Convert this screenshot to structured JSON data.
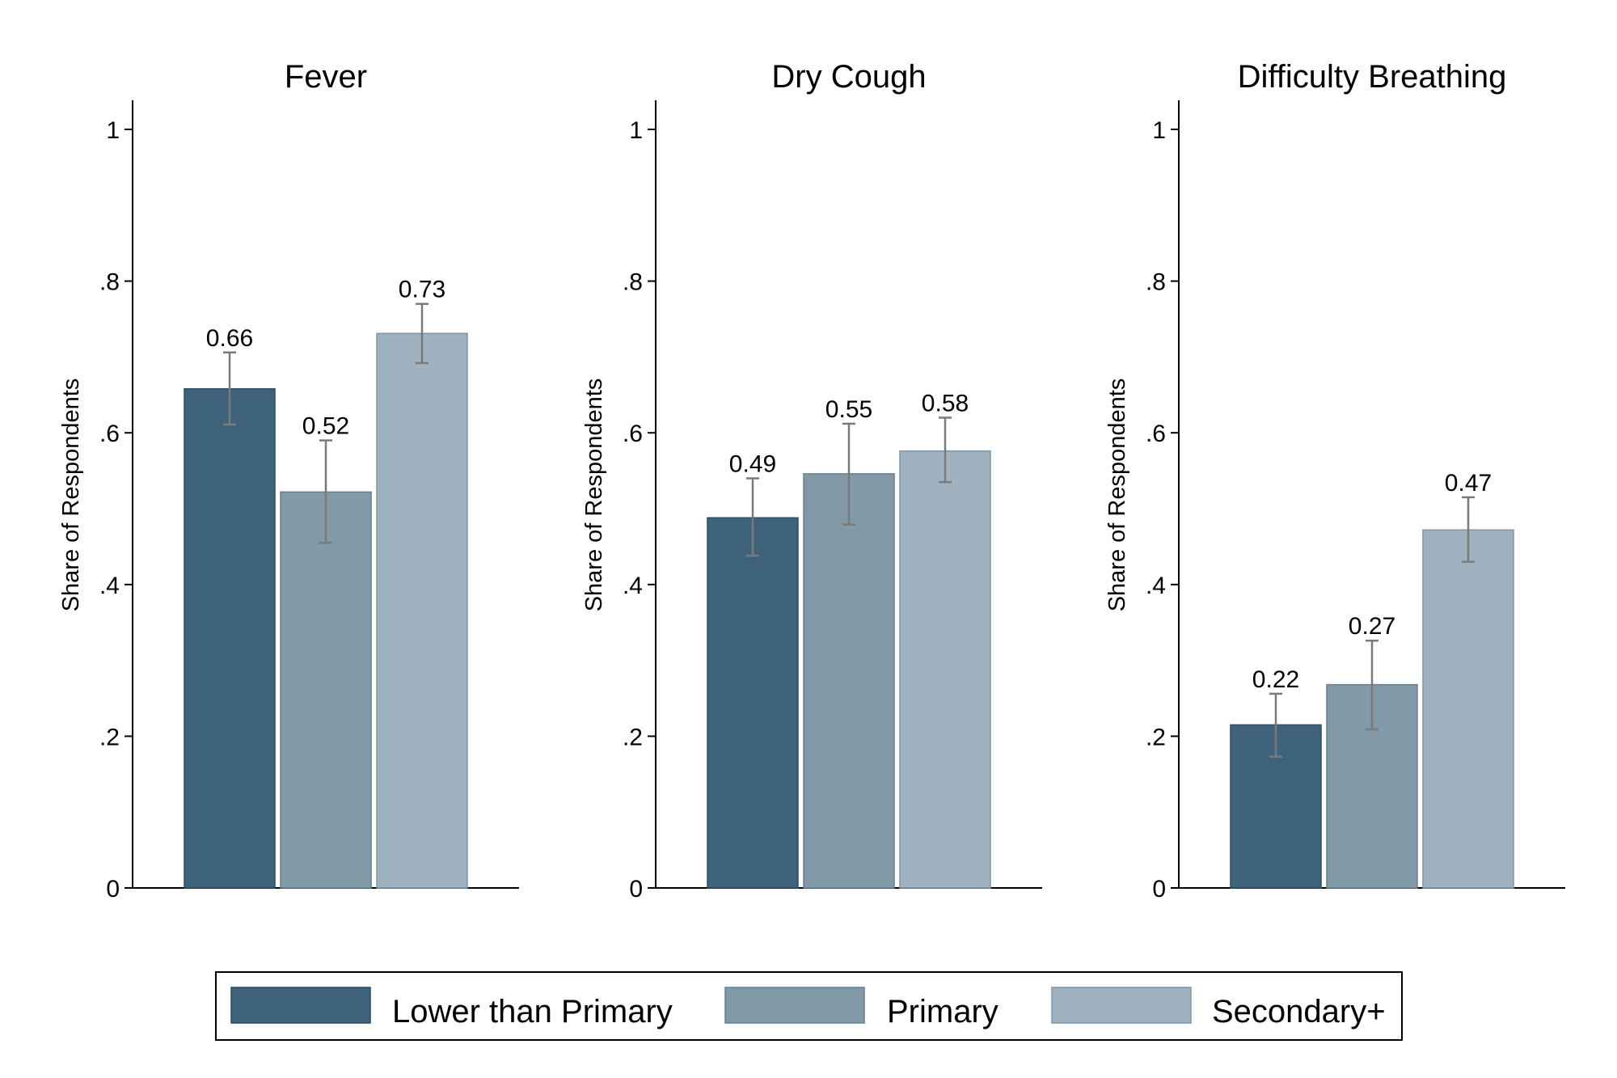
{
  "chart_data": [
    {
      "type": "bar",
      "title": "Fever",
      "ylabel": "Share of Respondents",
      "ylim": [
        0,
        1
      ],
      "yticks": [
        0,
        0.2,
        0.4,
        0.6,
        0.8,
        1
      ],
      "ytick_labels": [
        "0",
        ".2",
        ".4",
        ".6",
        ".8",
        "1"
      ],
      "series": [
        {
          "name": "Lower than Primary",
          "value": 0.658,
          "label": "0.66",
          "ci": [
            0.611,
            0.706
          ]
        },
        {
          "name": "Primary",
          "value": 0.522,
          "label": "0.52",
          "ci": [
            0.455,
            0.59
          ]
        },
        {
          "name": "Secondary+",
          "value": 0.731,
          "label": "0.73",
          "ci": [
            0.692,
            0.77
          ]
        }
      ]
    },
    {
      "type": "bar",
      "title": "Dry Cough",
      "ylabel": "Share of Respondents",
      "ylim": [
        0,
        1
      ],
      "yticks": [
        0,
        0.2,
        0.4,
        0.6,
        0.8,
        1
      ],
      "ytick_labels": [
        "0",
        ".2",
        ".4",
        ".6",
        ".8",
        "1"
      ],
      "series": [
        {
          "name": "Lower than Primary",
          "value": 0.488,
          "label": "0.49",
          "ci": [
            0.438,
            0.54
          ]
        },
        {
          "name": "Primary",
          "value": 0.546,
          "label": "0.55",
          "ci": [
            0.479,
            0.612
          ]
        },
        {
          "name": "Secondary+",
          "value": 0.576,
          "label": "0.58",
          "ci": [
            0.535,
            0.62
          ]
        }
      ]
    },
    {
      "type": "bar",
      "title": "Difficulty Breathing",
      "ylabel": "Share of Respondents",
      "ylim": [
        0,
        1
      ],
      "yticks": [
        0,
        0.2,
        0.4,
        0.6,
        0.8,
        1
      ],
      "ytick_labels": [
        "0",
        ".2",
        ".4",
        ".6",
        ".8",
        "1"
      ],
      "series": [
        {
          "name": "Lower than Primary",
          "value": 0.215,
          "label": "0.22",
          "ci": [
            0.173,
            0.256
          ]
        },
        {
          "name": "Primary",
          "value": 0.268,
          "label": "0.27",
          "ci": [
            0.209,
            0.326
          ]
        },
        {
          "name": "Secondary+",
          "value": 0.472,
          "label": "0.47",
          "ci": [
            0.43,
            0.515
          ]
        }
      ]
    }
  ],
  "legend": {
    "placement": "bottom",
    "items": [
      {
        "label": "Lower than Primary",
        "color": "#3f627b"
      },
      {
        "label": "Primary",
        "color": "#8299a8"
      },
      {
        "label": "Secondary+",
        "color": "#a0b2c0"
      }
    ]
  },
  "colors": {
    "bars": [
      "#3f627b",
      "#8299a8",
      "#a0b2c0"
    ],
    "bar_edges": [
      "#2f4c60",
      "#687f8f",
      "#7f95a6"
    ],
    "error_bar": "#7a7a7a",
    "axis": "#000000"
  }
}
